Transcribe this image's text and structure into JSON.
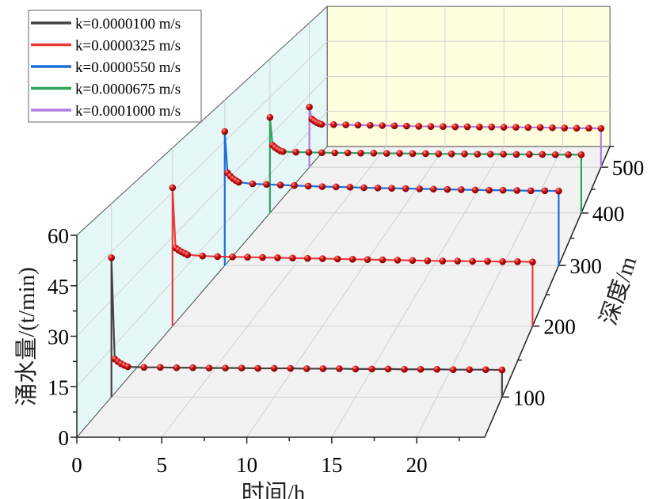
{
  "chart_data": {
    "type": "line",
    "projection": "3d-waterfall",
    "xlabel": "时间/h",
    "ylabel": "深度/m",
    "zlabel": "涌水量/(t/min)",
    "xlim": [
      0,
      24
    ],
    "ylim": [
      50,
      550
    ],
    "zlim": [
      0,
      60
    ],
    "x_ticks": [
      "0",
      "5",
      "10",
      "15",
      "20"
    ],
    "x_tick_values": [
      0,
      5,
      10,
      15,
      20
    ],
    "y_ticks": [
      "100",
      "200",
      "300",
      "400",
      "500"
    ],
    "y_tick_values": [
      100,
      200,
      300,
      400,
      500
    ],
    "z_ticks": [
      "0",
      "15",
      "30",
      "45",
      "60"
    ],
    "z_tick_values": [
      0,
      15,
      30,
      45,
      60
    ],
    "grid": true,
    "legend_position": "top-left",
    "marker_color": "#d40f0f",
    "x": [
      0,
      0.2,
      0.4,
      0.6,
      0.8,
      1,
      2,
      3,
      4,
      5,
      6,
      7,
      8,
      9,
      10,
      11,
      12,
      13,
      14,
      15,
      16,
      17,
      18,
      19,
      20,
      21,
      22,
      23,
      24
    ],
    "series": [
      {
        "name": "k=0.0000100 m/s",
        "color": "#444444",
        "depth": 100,
        "values": [
          43.2,
          11.8,
          11.0,
          10.3,
          9.8,
          9.4,
          9.2,
          9.2,
          9.1,
          9.1,
          9.0,
          9.0,
          9.0,
          8.9,
          8.9,
          8.9,
          8.8,
          8.8,
          8.8,
          8.7,
          8.7,
          8.7,
          8.6,
          8.6,
          8.6,
          8.5,
          8.5,
          8.5,
          8.4
        ]
      },
      {
        "name": "k=0.0000325 m/s",
        "color": "#e83a3a",
        "depth": 200,
        "values": [
          46.6,
          26.3,
          25.6,
          25.0,
          24.5,
          24.0,
          23.6,
          23.4,
          23.3,
          23.2,
          23.1,
          23.0,
          22.9,
          22.8,
          22.7,
          22.6,
          22.5,
          22.4,
          22.3,
          22.2,
          22.1,
          22.0,
          21.9,
          21.9,
          21.8,
          21.8,
          21.7,
          21.7,
          21.6
        ]
      },
      {
        "name": "k=0.0000550 m/s",
        "color": "#1a6fd8",
        "depth": 300,
        "values": [
          48.6,
          33.6,
          32.4,
          31.5,
          30.8,
          30.2,
          29.6,
          29.4,
          29.2,
          29.0,
          28.8,
          28.6,
          28.5,
          28.4,
          28.2,
          28.1,
          28.0,
          27.9,
          27.8,
          27.7,
          27.6,
          27.5,
          27.4,
          27.3,
          27.3,
          27.2,
          27.1,
          27.1,
          27.0
        ]
      },
      {
        "name": "k=0.0000675 m/s",
        "color": "#2ea35f",
        "depth": 400,
        "values": [
          37.2,
          26.4,
          25.5,
          24.8,
          24.2,
          23.9,
          23.7,
          23.6,
          23.5,
          23.4,
          23.4,
          23.3,
          23.3,
          23.2,
          23.2,
          23.1,
          23.1,
          23.0,
          23.0,
          23.0,
          22.9,
          22.9,
          22.9,
          22.8,
          22.8,
          22.8,
          22.7,
          22.7,
          22.7
        ]
      },
      {
        "name": "k=0.0001000 m/s",
        "color": "#b07de0",
        "depth": 500,
        "values": [
          25.0,
          20.0,
          19.2,
          18.6,
          18.1,
          17.8,
          17.7,
          17.6,
          17.5,
          17.4,
          17.3,
          17.2,
          17.1,
          17.0,
          16.9,
          16.9,
          16.8,
          16.8,
          16.7,
          16.7,
          16.6,
          16.6,
          16.5,
          16.5,
          16.4,
          16.3,
          16.2,
          16.2,
          16.1
        ]
      }
    ],
    "colors": {
      "left_wall": "#e6f7f7",
      "back_wall": "#ffffe0",
      "floor": "#f2f2f2",
      "grid": "#d0d0d0"
    }
  }
}
